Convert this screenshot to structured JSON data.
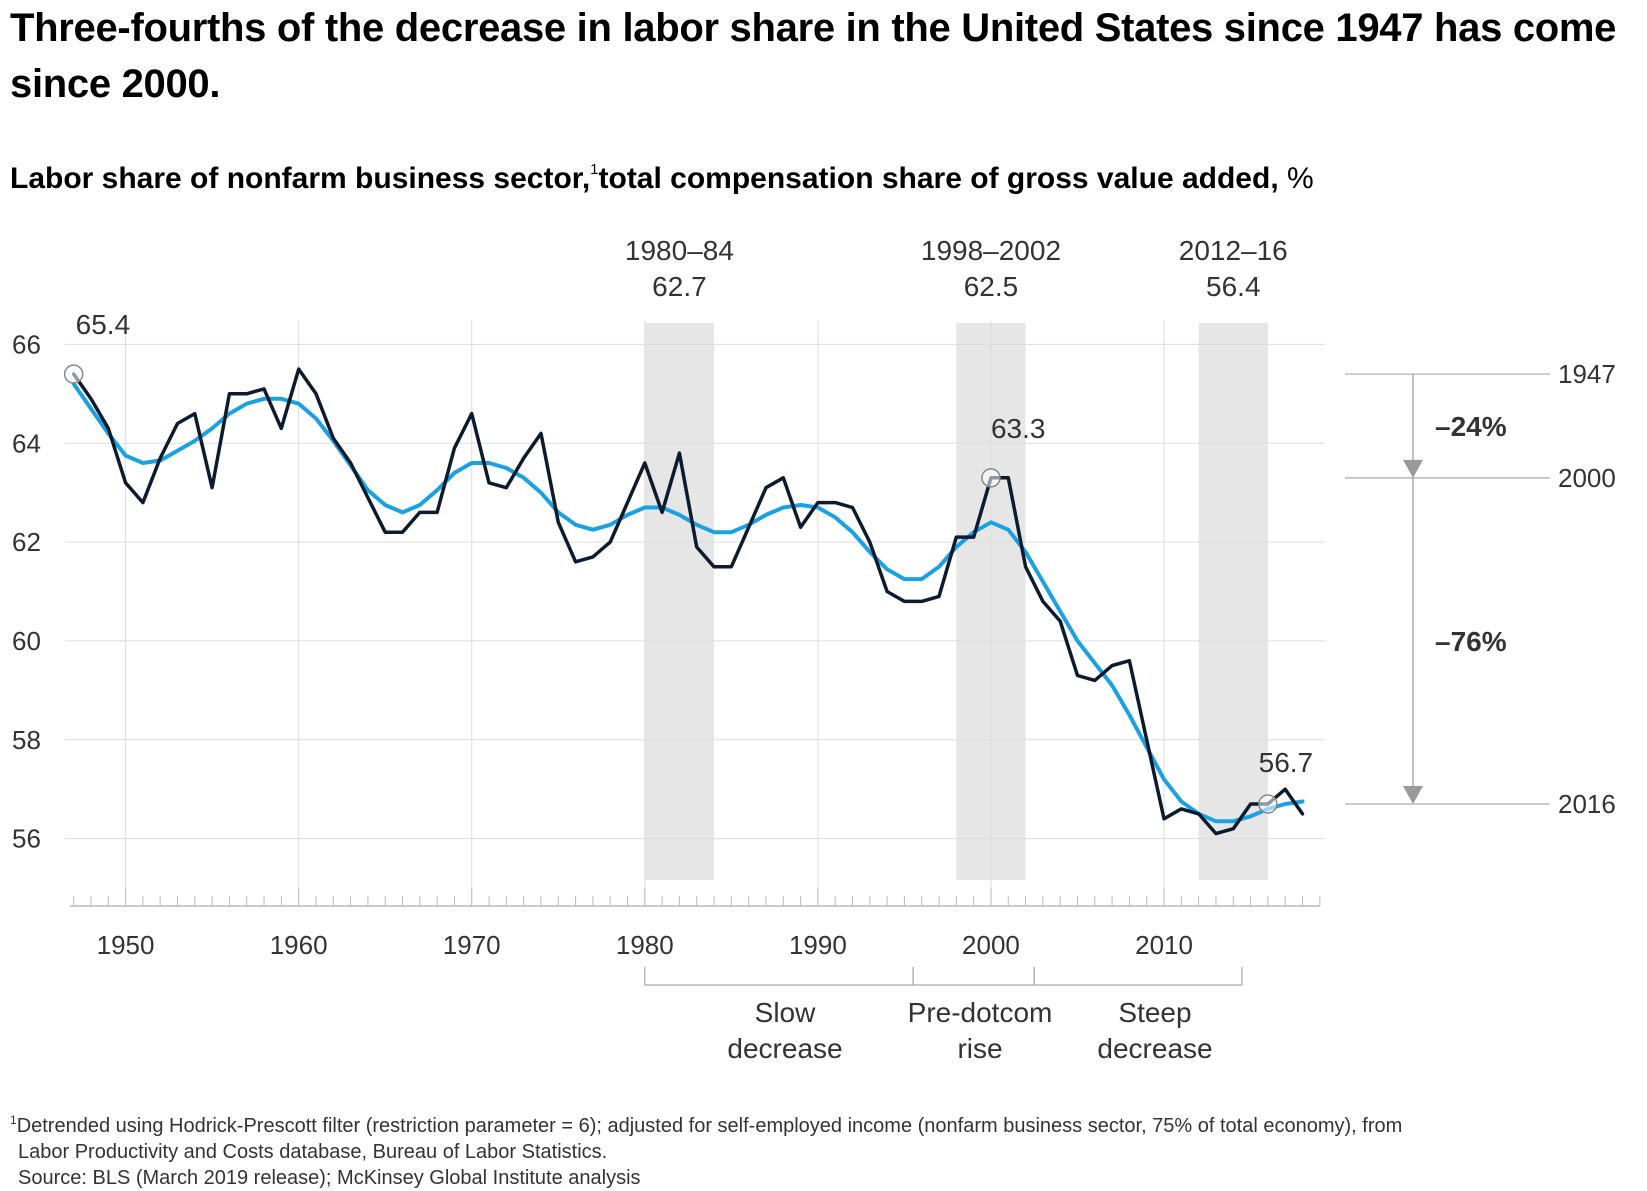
{
  "title": "Three-fourths of the decrease in labor share in the United States since 1947 has come since 2000.",
  "subtitle": {
    "text": "Labor share of nonfarm business sector,",
    "footnote_mark": "1",
    "text2": "total compensation share of gross value added,",
    "unit": "%"
  },
  "colors": {
    "actual": "#0c1b2e",
    "trend": "#1ba1e2",
    "band": "#e6e6e6",
    "grid": "#dddddd",
    "bracket": "#aaaaaa"
  },
  "chart_data": {
    "type": "line",
    "x_label": "",
    "y_label": "",
    "xlim": [
      1946.5,
      2019.3
    ],
    "ylim": [
      55,
      67
    ],
    "y_ticks": [
      56,
      58,
      60,
      62,
      64,
      66
    ],
    "x_ticks": [
      1950,
      1960,
      1970,
      1980,
      1990,
      2000,
      2010
    ],
    "grid": true,
    "series": [
      {
        "name": "",
        "style": "actual",
        "x": [
          1947,
          1948,
          1949,
          1950,
          1951,
          1952,
          1953,
          1954,
          1955,
          1956,
          1957,
          1958,
          1959,
          1960,
          1961,
          1962,
          1963,
          1964,
          1965,
          1966,
          1967,
          1968,
          1969,
          1970,
          1971,
          1972,
          1973,
          1974,
          1975,
          1976,
          1977,
          1978,
          1979,
          1980,
          1981,
          1982,
          1983,
          1984,
          1985,
          1986,
          1987,
          1988,
          1989,
          1990,
          1991,
          1992,
          1993,
          1994,
          1995,
          1996,
          1997,
          1998,
          1999,
          2000,
          2001,
          2002,
          2003,
          2004,
          2005,
          2006,
          2007,
          2008,
          2009,
          2010,
          2011,
          2012,
          2013,
          2014,
          2015,
          2016,
          2017,
          2018
        ],
        "y": [
          65.4,
          64.9,
          64.3,
          63.2,
          62.8,
          63.7,
          64.4,
          64.6,
          63.1,
          65.0,
          65.0,
          65.1,
          64.3,
          65.5,
          65.0,
          64.1,
          63.6,
          62.9,
          62.2,
          62.2,
          62.6,
          62.6,
          63.9,
          64.6,
          63.2,
          63.1,
          63.7,
          64.2,
          62.4,
          61.6,
          61.7,
          62.0,
          62.8,
          63.6,
          62.6,
          63.8,
          61.9,
          61.5,
          61.5,
          62.3,
          63.1,
          63.3,
          62.3,
          62.8,
          62.8,
          62.7,
          62.0,
          61.0,
          60.8,
          60.8,
          60.9,
          62.1,
          62.1,
          63.3,
          63.3,
          61.5,
          60.8,
          60.4,
          59.3,
          59.2,
          59.5,
          59.6,
          58.0,
          56.4,
          56.6,
          56.5,
          56.1,
          56.2,
          56.7,
          56.7,
          57.0,
          56.5
        ]
      },
      {
        "name": "",
        "style": "trend",
        "x": [
          1947,
          1948,
          1949,
          1950,
          1951,
          1952,
          1953,
          1954,
          1955,
          1956,
          1957,
          1958,
          1959,
          1960,
          1961,
          1962,
          1963,
          1964,
          1965,
          1966,
          1967,
          1968,
          1969,
          1970,
          1971,
          1972,
          1973,
          1974,
          1975,
          1976,
          1977,
          1978,
          1979,
          1980,
          1981,
          1982,
          1983,
          1984,
          1985,
          1986,
          1987,
          1988,
          1989,
          1990,
          1991,
          1992,
          1993,
          1994,
          1995,
          1996,
          1997,
          1998,
          1999,
          2000,
          2001,
          2002,
          2003,
          2004,
          2005,
          2006,
          2007,
          2008,
          2009,
          2010,
          2011,
          2012,
          2013,
          2014,
          2015,
          2016,
          2017,
          2018
        ],
        "y": [
          65.2,
          64.7,
          64.2,
          63.75,
          63.6,
          63.65,
          63.85,
          64.05,
          64.3,
          64.6,
          64.8,
          64.9,
          64.9,
          64.8,
          64.5,
          64.05,
          63.55,
          63.05,
          62.75,
          62.6,
          62.75,
          63.05,
          63.4,
          63.6,
          63.6,
          63.5,
          63.3,
          63.0,
          62.6,
          62.35,
          62.25,
          62.35,
          62.55,
          62.7,
          62.7,
          62.55,
          62.35,
          62.2,
          62.2,
          62.35,
          62.55,
          62.7,
          62.75,
          62.7,
          62.5,
          62.2,
          61.8,
          61.45,
          61.25,
          61.25,
          61.5,
          61.9,
          62.2,
          62.4,
          62.25,
          61.8,
          61.2,
          60.6,
          60.0,
          59.55,
          59.1,
          58.5,
          57.85,
          57.2,
          56.75,
          56.5,
          56.35,
          56.35,
          56.45,
          56.6,
          56.7,
          56.75
        ]
      }
    ],
    "highlight_bands": [
      {
        "x0": 1980,
        "x1": 1984,
        "label_line1": "1980–84",
        "label_line2": "62.7"
      },
      {
        "x0": 1998,
        "x1": 2002,
        "label_line1": "1998–2002",
        "label_line2": "62.5"
      },
      {
        "x0": 2012,
        "x1": 2016,
        "label_line1": "2012–16",
        "label_line2": "56.4"
      }
    ],
    "point_annotations": [
      {
        "x": 1947,
        "y": 65.4,
        "label": "65.4"
      },
      {
        "x": 2000,
        "y": 63.3,
        "label": "63.3"
      },
      {
        "x": 2016,
        "y": 56.7,
        "label": "56.7"
      }
    ],
    "reference_levels": [
      {
        "year_label": "1947",
        "y": 65.4
      },
      {
        "year_label": "2000",
        "y": 63.3
      },
      {
        "year_label": "2016",
        "y": 56.7
      }
    ],
    "change_labels": [
      {
        "from": 65.4,
        "to": 63.3,
        "label": "–24%"
      },
      {
        "from": 63.3,
        "to": 56.7,
        "label": "–76%"
      }
    ],
    "periods": [
      {
        "x0": 1980,
        "x1": 1995.5,
        "label_line1": "Slow",
        "label_line2": "decrease"
      },
      {
        "x0": 1995.5,
        "x1": 2002.5,
        "label_line1": "Pre-dotcom",
        "label_line2": "rise"
      },
      {
        "x0": 2002.5,
        "x1": 2014.5,
        "label_line1": "Steep",
        "label_line2": "decrease"
      }
    ]
  },
  "footnotes": {
    "mark": "1",
    "line1": "Detrended using Hodrick-Prescott filter (restriction parameter = 6); adjusted for self-employed income (nonfarm business sector, 75% of total economy), from",
    "line2": "Labor Productivity and Costs database, Bureau of Labor Statistics.",
    "source": "Source: BLS (March 2019 release); McKinsey Global Institute analysis"
  }
}
